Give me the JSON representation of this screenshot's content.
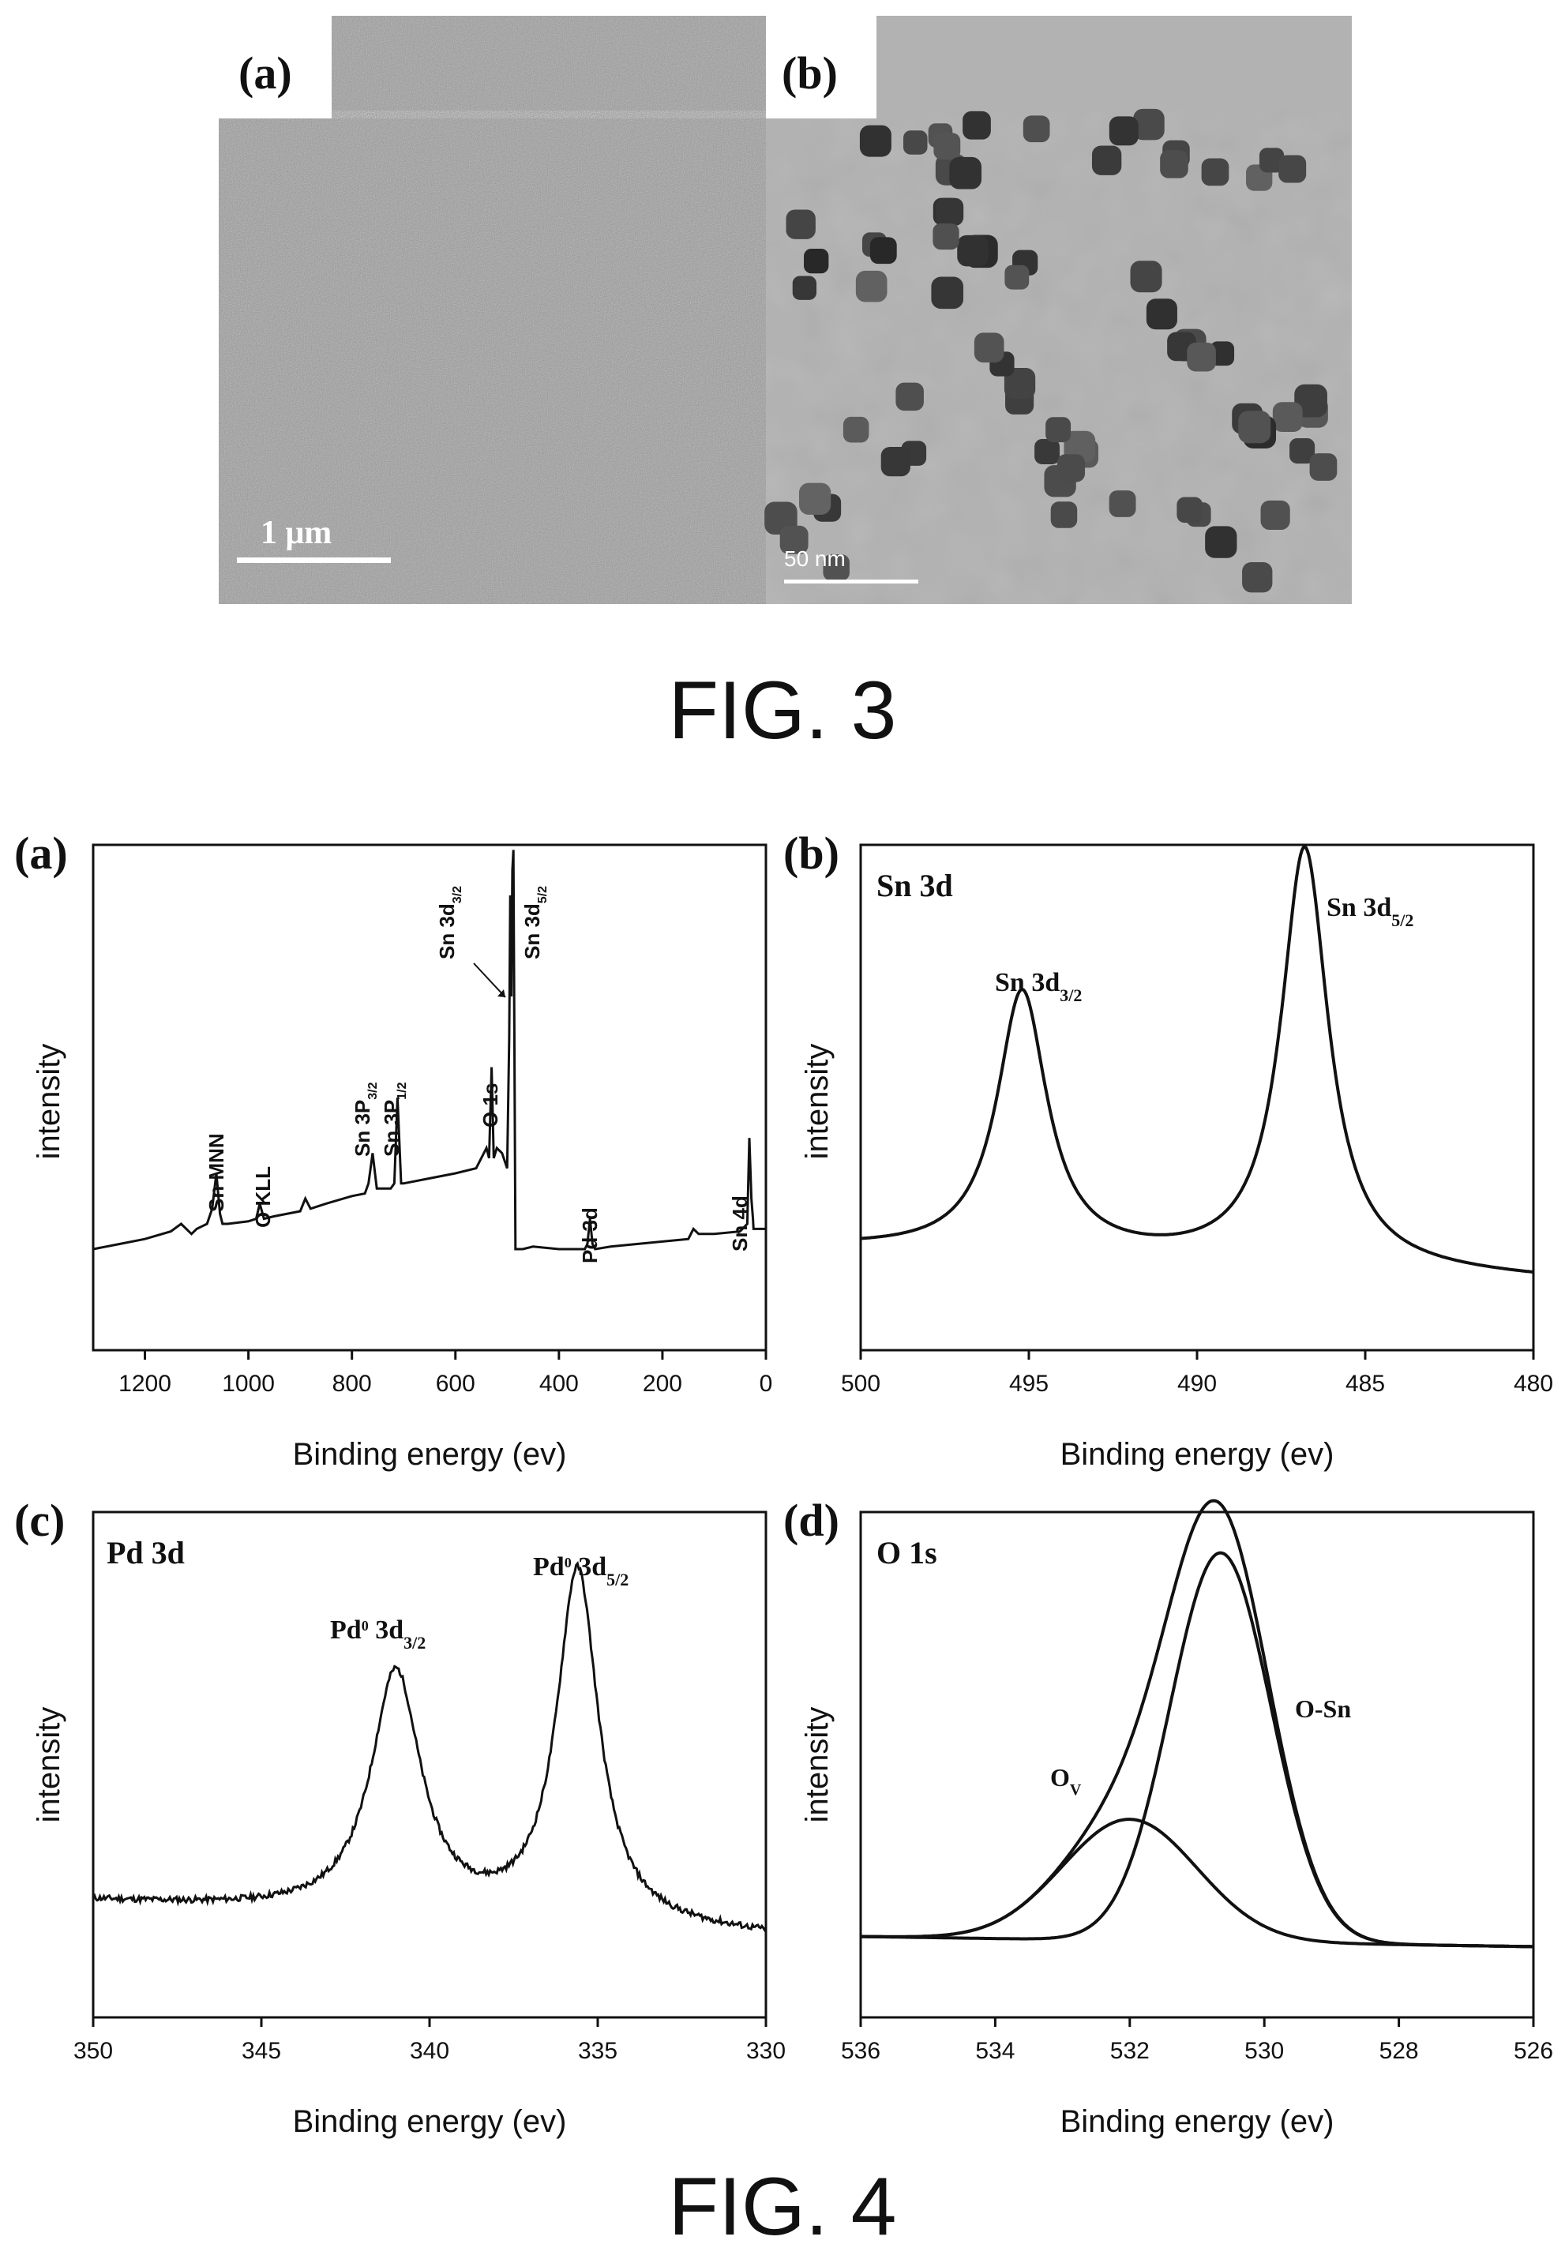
{
  "colors": {
    "line": "#111111",
    "axis": "#111111",
    "sem_bg": "#a9a9a9",
    "tem_bg": "#b4b4b4",
    "particle": "#3a3a3a"
  },
  "fig3": {
    "caption": "FIG. 3",
    "panel_a": {
      "label": "(a)",
      "scale_bar": "1 μm"
    },
    "panel_b": {
      "label": "(b)",
      "scale_bar": "50 nm"
    }
  },
  "fig4": {
    "caption": "FIG. 4",
    "panels": [
      {
        "label": "(a)",
        "title": ""
      },
      {
        "label": "(b)",
        "title": "Sn 3d"
      },
      {
        "label": "(c)",
        "title": "Pd 3d"
      },
      {
        "label": "(d)",
        "title": "O 1s"
      }
    ]
  },
  "chart_data": [
    {
      "type": "line",
      "panel": "(a)",
      "xlabel": "Binding energy (ev)",
      "ylabel": "intensity",
      "xlim": [
        1300,
        0
      ],
      "ylim": [
        0,
        100
      ],
      "xticks": [
        1200,
        1000,
        800,
        600,
        400,
        200,
        0
      ],
      "series": [
        {
          "x": [
            1300,
            1250,
            1200,
            1150,
            1130,
            1110,
            1100,
            1080,
            1070,
            1062,
            1055,
            1050,
            1040,
            1000,
            985,
            978,
            970,
            950,
            900,
            890,
            880,
            850,
            800,
            775,
            768,
            760,
            752,
            740,
            725,
            718,
            712,
            705,
            700,
            650,
            600,
            560,
            540,
            535,
            530,
            526,
            520,
            510,
            500,
            496,
            494,
            492,
            490,
            488,
            486,
            484,
            480,
            470,
            450,
            400,
            350,
            345,
            340,
            335,
            330,
            300,
            200,
            150,
            140,
            130,
            100,
            50,
            36,
            32,
            28,
            25,
            24,
            0
          ],
          "y": [
            20,
            21,
            22,
            23.5,
            25,
            23,
            24,
            25,
            28,
            35,
            27,
            25,
            25,
            25.5,
            26,
            29,
            26,
            26.5,
            27.5,
            30,
            28,
            29,
            30.5,
            31,
            33,
            39,
            32,
            32,
            32,
            33,
            50,
            33,
            33,
            34,
            35,
            36,
            40,
            38,
            56,
            38,
            40,
            39,
            36,
            62,
            90,
            70,
            95,
            99,
            60,
            20,
            20,
            20,
            20.5,
            20,
            20,
            21,
            26,
            21,
            20,
            20.5,
            21.5,
            22,
            24,
            23,
            23,
            23.5,
            25,
            42,
            30,
            26,
            24,
            24
          ]
        }
      ],
      "annotations": [
        "Sn MNN",
        "O KLL",
        "Sn 3P3/2",
        "Sn 3P1/2",
        "O 1s",
        "Sn 3d3/2",
        "Sn 3d5/2",
        "Pd 3d",
        "Sn 4d"
      ]
    },
    {
      "type": "line",
      "panel": "(b)",
      "title": "Sn 3d",
      "xlabel": "Binding energy (ev)",
      "ylabel": "intensity",
      "xlim": [
        500,
        480
      ],
      "ylim": [
        0,
        100
      ],
      "xticks": [
        500,
        495,
        490,
        485,
        480
      ],
      "peaks": [
        {
          "name": "Sn 3d3/2",
          "x": 495.2,
          "height": 52,
          "width": 0.9
        },
        {
          "name": "Sn 3d5/2",
          "x": 486.8,
          "height": 83,
          "width": 0.85
        }
      ],
      "baseline": [
        500,
        20,
        480,
        14
      ]
    },
    {
      "type": "line",
      "panel": "(c)",
      "title": "Pd 3d",
      "xlabel": "Binding energy (ev)",
      "ylabel": "intensity",
      "xlim": [
        350,
        330
      ],
      "ylim": [
        0,
        100
      ],
      "xticks": [
        350,
        345,
        340,
        335,
        330
      ],
      "peaks": [
        {
          "name": "Pd0 3d3/2",
          "x": 341.0,
          "height": 48,
          "width": 0.9
        },
        {
          "name": "Pd0 3d5/2",
          "x": 335.6,
          "height": 70,
          "width": 0.75
        }
      ],
      "baseline": [
        350,
        23,
        330,
        16
      ]
    },
    {
      "type": "line",
      "panel": "(d)",
      "title": "O 1s",
      "xlabel": "Binding energy (ev)",
      "ylabel": "intensity",
      "xlim": [
        536,
        526
      ],
      "ylim": [
        0,
        100
      ],
      "xticks": [
        536,
        534,
        532,
        530,
        528,
        526
      ],
      "series": [
        {
          "name": "O-Sn",
          "center": 530.65,
          "height": 77,
          "width": 0.75
        },
        {
          "name": "OV",
          "center": 532.0,
          "height": 24,
          "width": 1.0
        }
      ],
      "baseline": [
        536,
        16,
        526,
        14
      ]
    }
  ]
}
